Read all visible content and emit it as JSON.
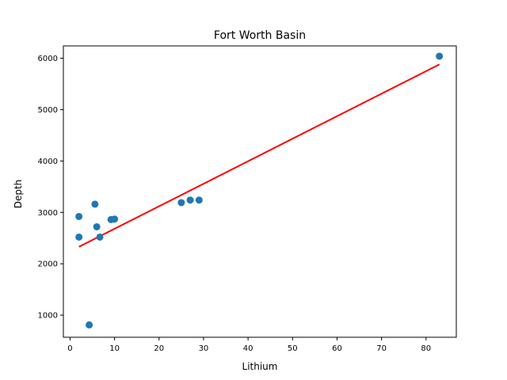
{
  "chart_data": {
    "type": "scatter",
    "title": "Fort Worth Basin",
    "xlabel": "Lithium",
    "ylabel": "Depth",
    "xlim": [
      -1.5,
      86.8
    ],
    "ylim": [
      570,
      6240
    ],
    "xticks": [
      0,
      10,
      20,
      30,
      40,
      50,
      60,
      70,
      80
    ],
    "yticks": [
      1000,
      2000,
      3000,
      4000,
      5000,
      6000
    ],
    "grid": false,
    "points": [
      {
        "x": 2.0,
        "y": 2920
      },
      {
        "x": 2.0,
        "y": 2520
      },
      {
        "x": 4.3,
        "y": 810
      },
      {
        "x": 5.6,
        "y": 3160
      },
      {
        "x": 6.0,
        "y": 2720
      },
      {
        "x": 6.7,
        "y": 2520
      },
      {
        "x": 9.2,
        "y": 2860
      },
      {
        "x": 10.0,
        "y": 2870
      },
      {
        "x": 25.0,
        "y": 3190
      },
      {
        "x": 27.0,
        "y": 3240
      },
      {
        "x": 29.0,
        "y": 3240
      },
      {
        "x": 83.0,
        "y": 6040
      }
    ],
    "fit_line": {
      "x": [
        2.0,
        83.0
      ],
      "y": [
        2330,
        5880
      ]
    },
    "colors": {
      "points": "#1f77b4",
      "fit_line": "#ff0000",
      "axes": "#000000"
    }
  }
}
